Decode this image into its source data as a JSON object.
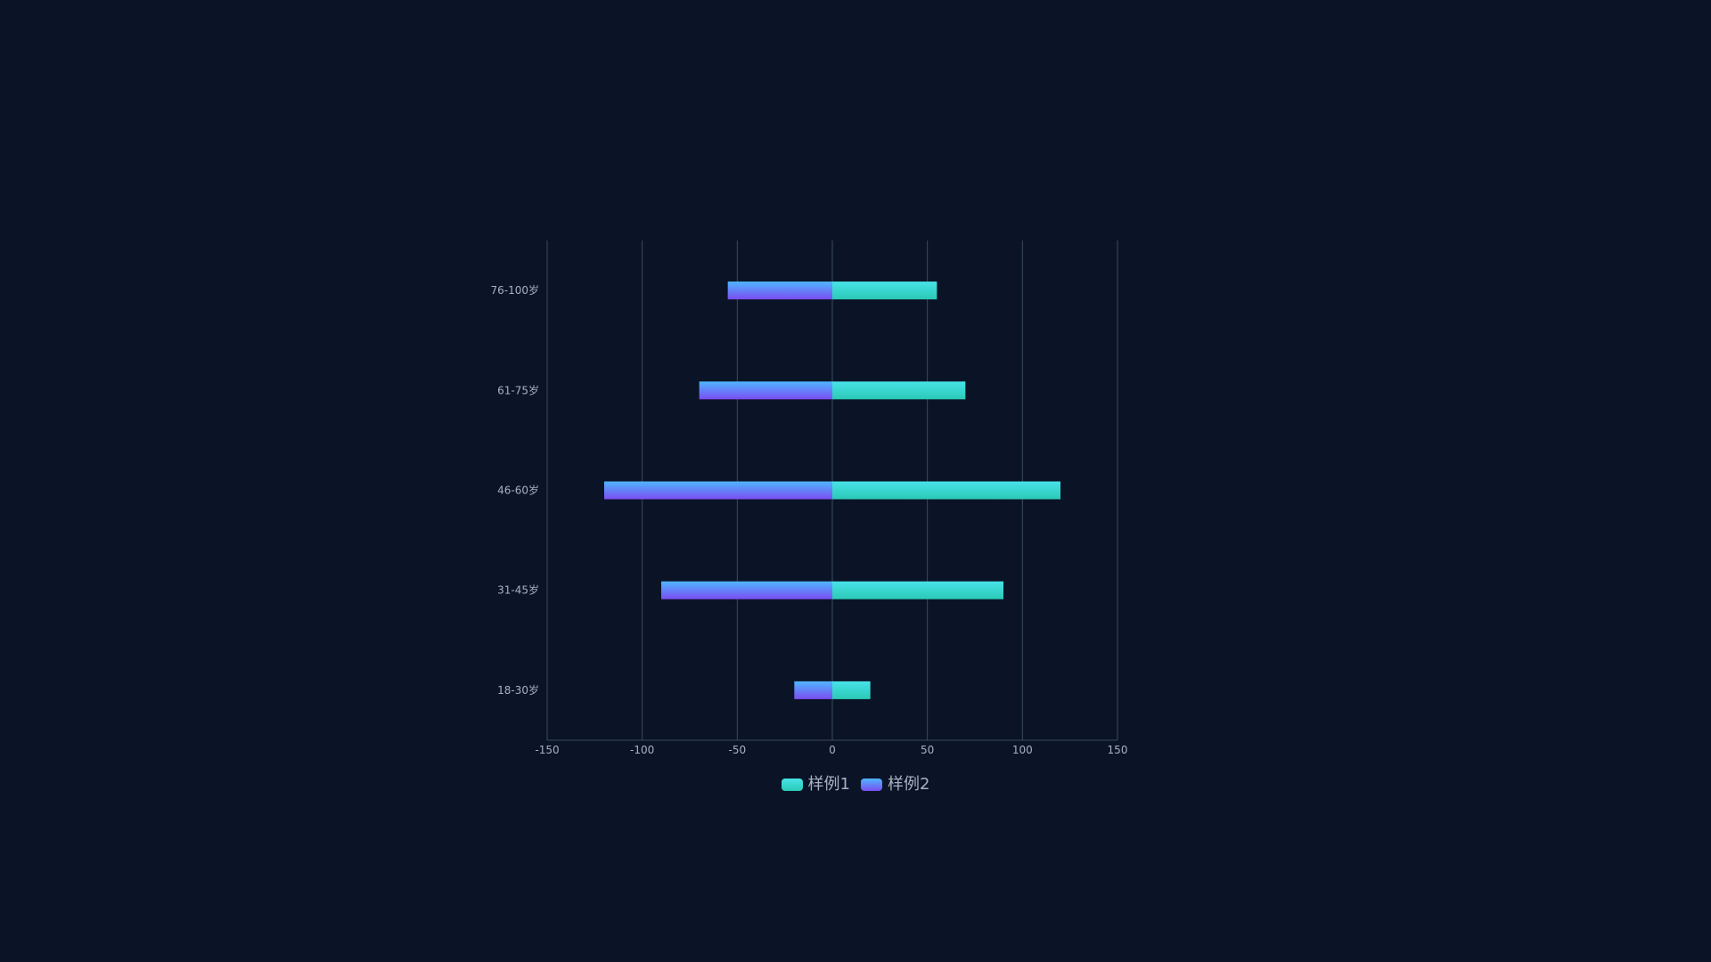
{
  "chart_data": {
    "type": "bar",
    "orientation": "horizontal",
    "categories": [
      "18-30岁",
      "31-45岁",
      "46-60岁",
      "61-75岁",
      "76-100岁"
    ],
    "series": [
      {
        "name": "样例1",
        "values": [
          20,
          90,
          120,
          70,
          55
        ]
      },
      {
        "name": "样例2",
        "values": [
          -20,
          -90,
          -120,
          -70,
          -55
        ]
      }
    ],
    "xlim": [
      -150,
      150
    ],
    "xticks": [
      "-150",
      "-100",
      "-50",
      "0",
      "50",
      "100",
      "150"
    ],
    "grid": true,
    "legend_position": "bottom-center"
  },
  "colors": {
    "background": "#0b1426",
    "axis_text": "#a7b1c2",
    "grid": "#3a4a60",
    "series1_top": "#48e3e8",
    "series1_bottom": "#2bc9b6",
    "series2_top": "#4fb6ff",
    "series2_bottom": "#7b4df2"
  },
  "legend": {
    "items": [
      {
        "label": "样例1"
      },
      {
        "label": "样例2"
      }
    ]
  }
}
